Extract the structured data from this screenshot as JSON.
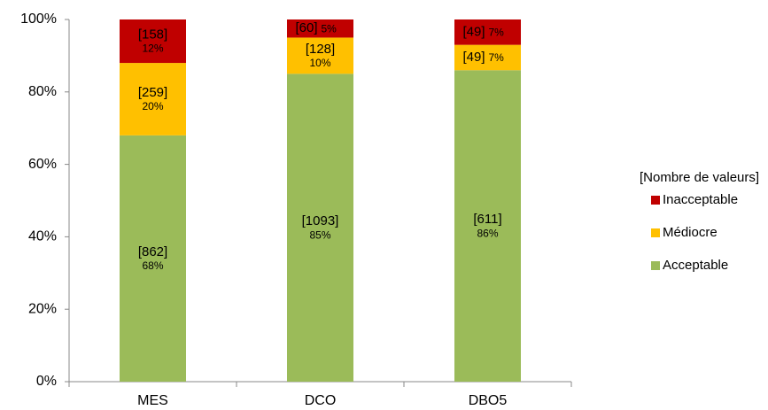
{
  "chart_data": {
    "type": "stacked_bar_percent",
    "categories": [
      "MES",
      "DCO",
      "DBO5"
    ],
    "ylim": [
      0,
      100
    ],
    "yticks": [
      {
        "value": 0,
        "label": "0%"
      },
      {
        "value": 20,
        "label": "20%"
      },
      {
        "value": 40,
        "label": "40%"
      },
      {
        "value": 60,
        "label": "60%"
      },
      {
        "value": 80,
        "label": "80%"
      },
      {
        "value": 100,
        "label": "100%"
      }
    ],
    "legend_title": "[Nombre de valeurs]",
    "legend_position": "right",
    "series": [
      {
        "name": "Acceptable",
        "color": "#9bbb59",
        "values": [
          68,
          85,
          86
        ],
        "value_labels": [
          "68%",
          "85%",
          "86%"
        ],
        "count_labels": [
          "[862]",
          "[1093]",
          "[611]"
        ]
      },
      {
        "name": "Médiocre",
        "color": "#ffc000",
        "values": [
          20,
          10,
          7
        ],
        "value_labels": [
          "20%",
          "10%",
          "7%"
        ],
        "count_labels": [
          "[259]",
          "[128]",
          "[49]"
        ]
      },
      {
        "name": "Inacceptable",
        "color": "#c00000",
        "values": [
          12,
          5,
          7
        ],
        "value_labels": [
          "12%",
          "5%",
          "7%"
        ],
        "count_labels": [
          "[158]",
          "[60]",
          "[49]"
        ]
      }
    ]
  }
}
